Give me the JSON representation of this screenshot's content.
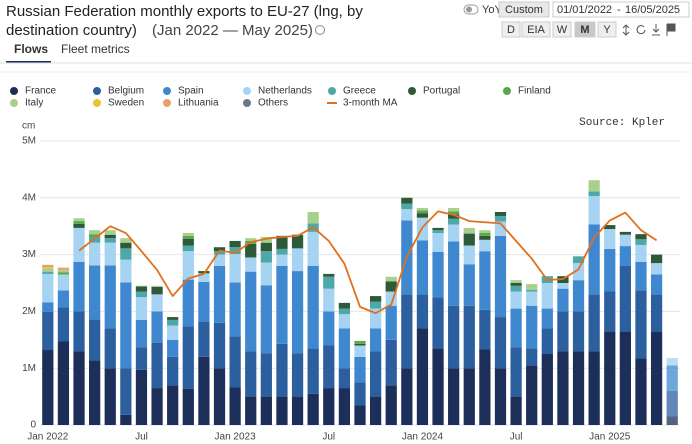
{
  "ui": {
    "title_line1": "Russian Federation monthly exports to EU-27 (lng, by",
    "title_line2": "destination country)",
    "period": "(Jan 2022 — May 2025)",
    "tabs": [
      "Flows",
      "Fleet metrics"
    ],
    "yoy": "YoY",
    "range_mode": "Custom",
    "date_from": "01/01/2022",
    "date_sep": "-",
    "date_to": "16/05/2025",
    "granularity": [
      "D",
      "EIA",
      "W",
      "M",
      "Y"
    ],
    "selected_granularity": "M"
  },
  "chart_data": {
    "type": "bar",
    "stacked": true,
    "unit_label": "cm",
    "annotation": "Source: Kpler",
    "categories": [
      "Jan 2022",
      null,
      null,
      null,
      null,
      null,
      "Jul",
      null,
      null,
      null,
      null,
      null,
      "Jan 2023",
      null,
      null,
      null,
      null,
      null,
      "Jul",
      null,
      null,
      null,
      null,
      null,
      "Jan 2024",
      null,
      null,
      null,
      null,
      null,
      "Jul",
      null,
      null,
      null,
      null,
      null,
      "Jan 2025",
      null,
      null,
      null,
      null
    ],
    "ylim": [
      0,
      5000000
    ],
    "yticks": [
      0,
      {
        "value": 1000000,
        "label": "1M"
      },
      {
        "value": 2000000,
        "label": "2M"
      },
      {
        "value": 3000000,
        "label": "3M"
      },
      {
        "value": 4000000,
        "label": "4M"
      },
      {
        "value": 5000000,
        "label": "5M"
      }
    ],
    "grid": true,
    "series": [
      {
        "name": "France",
        "color": "#1b2f5a",
        "values": [
          1320000,
          1470000,
          1300000,
          1140000,
          1000000,
          180000,
          970000,
          650000,
          700000,
          640000,
          1200000,
          1000000,
          660000,
          500000,
          500000,
          500000,
          500000,
          550000,
          650000,
          650000,
          350000,
          500000,
          700000,
          1000000,
          1700000,
          1350000,
          1000000,
          1000000,
          1330000,
          1000000,
          500000,
          1050000,
          1250000,
          1300000,
          1300000,
          1300000,
          1650000,
          1650000,
          1170000,
          1650000,
          150000
        ]
      },
      {
        "name": "Belgium",
        "color": "#2c5f9e",
        "values": [
          670000,
          600000,
          700000,
          720000,
          700000,
          820000,
          400000,
          800000,
          500000,
          1100000,
          620000,
          800000,
          900000,
          800000,
          760000,
          930000,
          760000,
          800000,
          750000,
          350000,
          400000,
          800000,
          800000,
          1300000,
          600000,
          900000,
          1100000,
          1100000,
          700000,
          900000,
          870000,
          300000,
          450000,
          700000,
          700000,
          1000000,
          700000,
          1150000,
          1200000,
          650000,
          450000
        ]
      },
      {
        "name": "Spain",
        "color": "#3f88d0",
        "values": [
          170000,
          300000,
          870000,
          950000,
          1110000,
          1510000,
          480000,
          550000,
          300000,
          820000,
          700000,
          1000000,
          950000,
          1400000,
          1200000,
          1370000,
          1450000,
          1450000,
          600000,
          700000,
          450000,
          400000,
          600000,
          1300000,
          950000,
          800000,
          1130000,
          730000,
          1030000,
          1430000,
          680000,
          750000,
          350000,
          400000,
          550000,
          1230000,
          750000,
          350000,
          500000,
          350000,
          450000
        ]
      },
      {
        "name": "Netherlands",
        "color": "#a6d3f2",
        "values": [
          500000,
          280000,
          600000,
          400000,
          400000,
          400000,
          400000,
          300000,
          250000,
          500000,
          150000,
          200000,
          500000,
          250000,
          400000,
          200000,
          400000,
          600000,
          400000,
          250000,
          200000,
          350000,
          250000,
          200000,
          400000,
          330000,
          300000,
          330000,
          200000,
          250000,
          300000,
          250000,
          450000,
          100000,
          300000,
          500000,
          350000,
          200000,
          300000,
          200000,
          130000
        ]
      },
      {
        "name": "Greece",
        "color": "#4fa8a8",
        "values": [
          40000,
          0,
          0,
          100000,
          80000,
          200000,
          100000,
          0,
          100000,
          100000,
          0,
          60000,
          120000,
          0,
          200000,
          100000,
          0,
          150000,
          210000,
          100000,
          0,
          120000,
          0,
          100000,
          0,
          50000,
          100000,
          0,
          0,
          100000,
          100000,
          30000,
          120000,
          0,
          120000,
          80000,
          0,
          0,
          100000,
          0,
          0
        ]
      },
      {
        "name": "Portugal",
        "color": "#2f5a3a",
        "values": [
          0,
          0,
          70000,
          0,
          60000,
          100000,
          80000,
          130000,
          50000,
          120000,
          40000,
          70000,
          110000,
          240000,
          150000,
          230000,
          240000,
          0,
          50000,
          100000,
          30000,
          100000,
          180000,
          100000,
          80000,
          40000,
          80000,
          210000,
          70000,
          70000,
          50000,
          0,
          0,
          120000,
          0,
          0,
          70000,
          50000,
          90000,
          150000,
          0
        ]
      },
      {
        "name": "Finland",
        "color": "#5aa84c",
        "values": [
          0,
          40000,
          50000,
          50000,
          0,
          0,
          20000,
          0,
          0,
          50000,
          0,
          0,
          0,
          50000,
          0,
          0,
          0,
          0,
          0,
          0,
          50000,
          0,
          0,
          0,
          50000,
          0,
          50000,
          0,
          50000,
          0,
          0,
          0,
          0,
          0,
          0,
          0,
          0,
          0,
          0,
          0,
          0
        ]
      },
      {
        "name": "Italy",
        "color": "#a8d08d",
        "values": [
          60000,
          40000,
          50000,
          70000,
          80000,
          80000,
          0,
          20000,
          0,
          50000,
          0,
          0,
          0,
          50000,
          100000,
          0,
          0,
          200000,
          0,
          0,
          0,
          0,
          80000,
          0,
          40000,
          0,
          60000,
          100000,
          50000,
          0,
          50000,
          100000,
          0,
          0,
          0,
          200000,
          0,
          0,
          0,
          0,
          0
        ]
      },
      {
        "name": "Sweden",
        "color": "#e8c230",
        "values": [
          20000,
          0,
          0,
          0,
          0,
          0,
          0,
          0,
          0,
          0,
          0,
          0,
          0,
          0,
          0,
          0,
          0,
          0,
          0,
          0,
          0,
          0,
          0,
          0,
          0,
          0,
          0,
          0,
          0,
          0,
          0,
          0,
          0,
          0,
          0,
          0,
          0,
          0,
          0,
          0,
          0
        ]
      },
      {
        "name": "Lithuania",
        "color": "#e8a070",
        "values": [
          40000,
          40000,
          0,
          0,
          0,
          0,
          0,
          0,
          0,
          0,
          0,
          0,
          0,
          0,
          0,
          0,
          0,
          0,
          0,
          0,
          0,
          0,
          0,
          0,
          0,
          0,
          0,
          0,
          0,
          0,
          0,
          0,
          0,
          0,
          0,
          0,
          0,
          0,
          0,
          0,
          0
        ]
      },
      {
        "name": "Others",
        "color": "#6b7a8a",
        "values": [
          0,
          0,
          0,
          0,
          0,
          0,
          0,
          0,
          0,
          0,
          0,
          0,
          0,
          0,
          0,
          0,
          0,
          0,
          0,
          0,
          0,
          0,
          0,
          0,
          0,
          0,
          0,
          0,
          0,
          0,
          0,
          0,
          0,
          0,
          0,
          0,
          0,
          0,
          0,
          0,
          0
        ]
      },
      {
        "name": "3-month MA",
        "color": "#e0701e",
        "type": "line",
        "values": [
          null,
          null,
          3070000,
          3280000,
          3500000,
          3380000,
          3060000,
          2730000,
          2270000,
          2580000,
          2660000,
          3070000,
          3030000,
          3220000,
          3280000,
          3310000,
          3330000,
          3480000,
          3240000,
          2840000,
          2080000,
          1970000,
          2120000,
          2960000,
          3480000,
          3760000,
          3700000,
          3590000,
          3570000,
          3550000,
          3240000,
          2930000,
          2550000,
          2570000,
          2740000,
          3300000,
          3600000,
          3740000,
          3430000,
          3250000,
          null
        ]
      }
    ]
  }
}
